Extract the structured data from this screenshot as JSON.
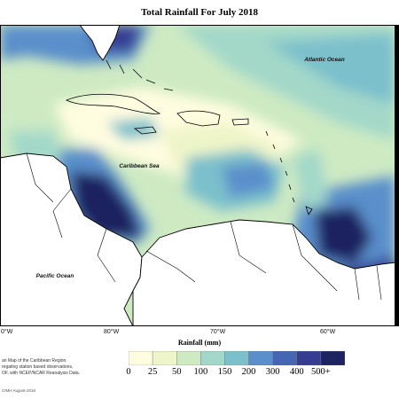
{
  "title": "Total Rainfall For July 2018",
  "ocean_labels": {
    "atlantic": "Atlantic Ocean",
    "caribbean": "Caribbean Sea",
    "pacific": "Pacific Ocean"
  },
  "longitude_labels": [
    "0°W",
    "80°W",
    "70°W",
    "60°W"
  ],
  "colorbar": {
    "title": "Rainfall (mm)",
    "ticks": [
      "0",
      "25",
      "50",
      "100",
      "150",
      "200",
      "300",
      "400",
      "500+"
    ],
    "colors": [
      "#fffde0",
      "#eef5c8",
      "#cdeac3",
      "#a3d8c9",
      "#7cc0cc",
      "#5a8fcb",
      "#4466b3",
      "#363c92",
      "#1e2461"
    ]
  },
  "caption_lines": [
    "an Map of the Caribbean Region.",
    "regating station based observations,",
    "OF, with NCEP/NCAR Reanalysis Data."
  ],
  "credit": "CIMH August-2018"
}
